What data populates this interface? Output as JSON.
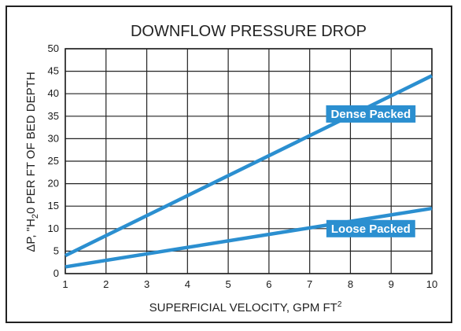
{
  "chart_data": {
    "type": "line",
    "title": "DOWNFLOW PRESSURE DROP",
    "xlabel": "SUPERFICIAL VELOCITY, GPM FT",
    "xlabel_superscript": "2",
    "ylabel_parts": [
      "ΔP, \"H",
      "2",
      "0 PER FT OF BED DEPTH"
    ],
    "xlim": [
      1,
      10
    ],
    "ylim": [
      0,
      50
    ],
    "xticks": [
      1,
      2,
      3,
      4,
      5,
      6,
      7,
      8,
      9,
      10
    ],
    "yticks": [
      0,
      5,
      10,
      15,
      20,
      25,
      30,
      35,
      40,
      45,
      50
    ],
    "grid": true,
    "series": [
      {
        "name": "Dense Packed",
        "x": [
          1,
          10
        ],
        "y": [
          4,
          44
        ],
        "label_at": [
          8.5,
          35.5
        ]
      },
      {
        "name": "Loose Packed",
        "x": [
          1,
          10
        ],
        "y": [
          1.5,
          14.5
        ],
        "label_at": [
          8.5,
          10
        ]
      }
    ],
    "colors": {
      "line": "#2b8fd0",
      "grid": "#222222",
      "label_bg": "#2b8fd0",
      "label_text": "#ffffff",
      "frame": "#222222"
    }
  }
}
